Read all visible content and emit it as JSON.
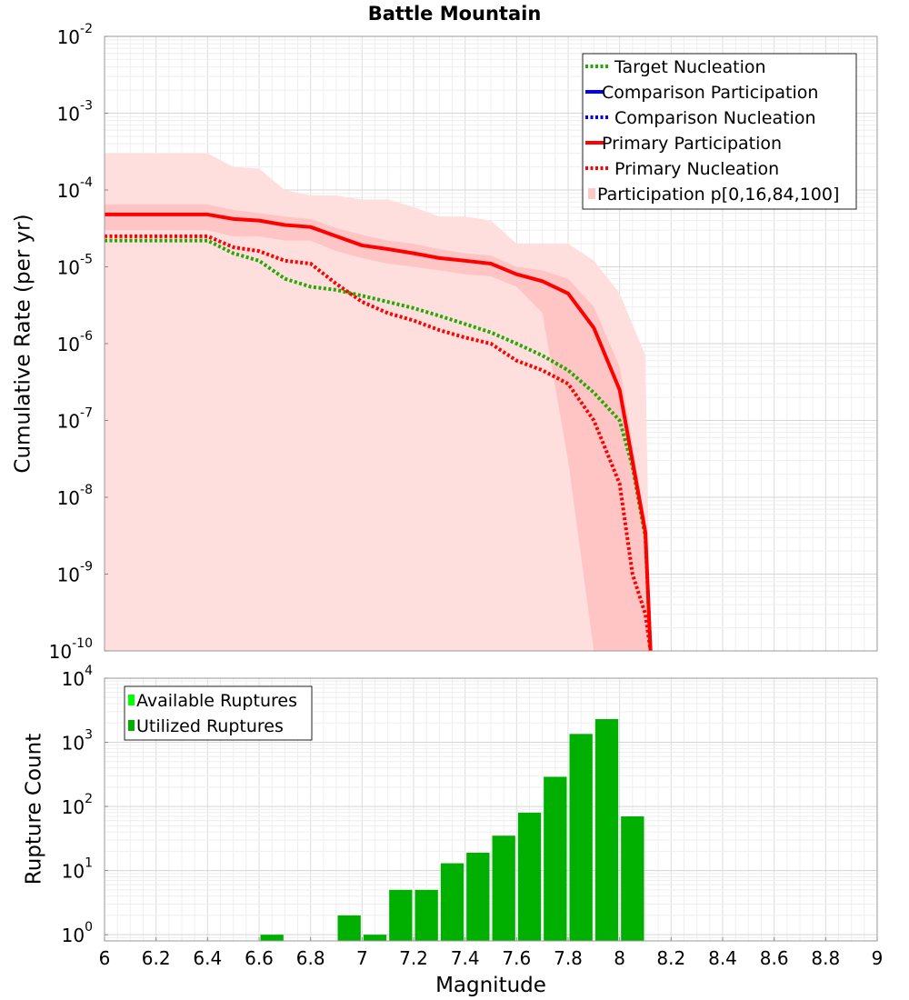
{
  "chart_data": {
    "title": "Battle Mountain",
    "xlabel": "Magnitude",
    "xlim": [
      6,
      9
    ],
    "x_ticks": [
      "6",
      "6.2",
      "6.4",
      "6.6",
      "6.8",
      "7",
      "7.2",
      "7.4",
      "7.6",
      "7.8",
      "8",
      "8.2",
      "8.4",
      "8.6",
      "8.8",
      "9"
    ],
    "top": {
      "type": "line",
      "ylabel": "Cumulative Rate (per yr)",
      "yscale": "log",
      "ylim": [
        1e-10,
        0.01
      ],
      "y_ticks": [
        {
          "base": "10",
          "exp": "-10"
        },
        {
          "base": "10",
          "exp": "-9"
        },
        {
          "base": "10",
          "exp": "-8"
        },
        {
          "base": "10",
          "exp": "-7"
        },
        {
          "base": "10",
          "exp": "-6"
        },
        {
          "base": "10",
          "exp": "-5"
        },
        {
          "base": "10",
          "exp": "-4"
        },
        {
          "base": "10",
          "exp": "-3"
        },
        {
          "base": "10",
          "exp": "-2"
        }
      ],
      "legend": [
        {
          "label": "Target Nucleation",
          "color": "#22aa00",
          "style": "dotted"
        },
        {
          "label": "Comparison Participation",
          "color": "#0000ff",
          "style": "solid"
        },
        {
          "label": "Comparison Nucleation",
          "color": "#0000ff",
          "style": "dotted"
        },
        {
          "label": "Primary Participation",
          "color": "#ff0000",
          "style": "solid"
        },
        {
          "label": "Primary Nucleation",
          "color": "#ff0000",
          "style": "dotted"
        },
        {
          "label": "Participation p[0,16,84,100]",
          "color": "#ffc8c8",
          "style": "box"
        }
      ],
      "band_outer": {
        "name": "Participation p0-p100",
        "color": "#ffdede",
        "x": [
          6.0,
          6.4,
          6.5,
          6.6,
          6.7,
          6.8,
          6.9,
          7.0,
          7.1,
          7.2,
          7.3,
          7.4,
          7.5,
          7.6,
          7.7,
          7.8,
          7.9,
          8.0,
          8.1,
          8.12
        ],
        "upper": [
          0.0003,
          0.0003,
          0.0002,
          0.00019,
          0.0001,
          8.5e-05,
          8.5e-05,
          7.5e-05,
          7.5e-05,
          6e-05,
          4.5e-05,
          4.5e-05,
          4e-05,
          2e-05,
          2e-05,
          2e-05,
          1.2e-05,
          4.5e-06,
          7e-07,
          1e-10
        ],
        "lower": [
          1e-10,
          1e-10,
          1e-10,
          1e-10,
          1e-10,
          1e-10,
          1e-10,
          1e-10,
          1e-10,
          1e-10,
          1e-10,
          1e-10,
          1e-10,
          1e-10,
          1e-10,
          1e-10,
          1e-10,
          1e-10,
          1e-10,
          1e-10
        ]
      },
      "band_inner": {
        "name": "Participation p16-p84",
        "color": "#ffc4c4",
        "x": [
          6.0,
          6.4,
          6.5,
          6.6,
          6.7,
          6.8,
          6.9,
          7.0,
          7.1,
          7.2,
          7.3,
          7.4,
          7.5,
          7.6,
          7.7,
          7.8,
          7.9,
          8.0,
          8.1,
          8.12
        ],
        "upper": [
          6.5e-05,
          6.5e-05,
          5.5e-05,
          5e-05,
          4.5e-05,
          4.2e-05,
          3.2e-05,
          2.6e-05,
          2.2e-05,
          2e-05,
          1.7e-05,
          1.5e-05,
          1.4e-05,
          1e-05,
          9e-06,
          7e-06,
          3e-06,
          5e-07,
          5e-09,
          1e-10
        ],
        "lower": [
          3e-05,
          3e-05,
          2.5e-05,
          2.5e-05,
          2.2e-05,
          2.2e-05,
          1.6e-05,
          1.3e-05,
          1.1e-05,
          1e-05,
          9e-06,
          8e-06,
          7.5e-06,
          5.5e-06,
          2.5e-06,
          3e-08,
          1e-10,
          1e-10,
          1e-10,
          1e-10
        ]
      },
      "series": [
        {
          "name": "Target Nucleation",
          "color": "#22aa00",
          "style": "dotted",
          "x": [
            6.0,
            6.4,
            6.5,
            6.6,
            6.7,
            6.8,
            6.9,
            7.0,
            7.1,
            7.2,
            7.3,
            7.4,
            7.5,
            7.6,
            7.7,
            7.8,
            7.9,
            8.0,
            8.05,
            8.1,
            8.12
          ],
          "values": [
            2.2e-05,
            2.2e-05,
            1.5e-05,
            1.2e-05,
            7e-06,
            5.5e-06,
            5e-06,
            4.2e-06,
            3.5e-06,
            2.9e-06,
            2.3e-06,
            1.8e-06,
            1.4e-06,
            1e-06,
            7e-07,
            4.5e-07,
            2.3e-07,
            1e-07,
            2.5e-08,
            3e-09,
            1e-10
          ]
        },
        {
          "name": "Primary Participation",
          "color": "#ff0000",
          "style": "solid",
          "x": [
            6.0,
            6.4,
            6.5,
            6.6,
            6.7,
            6.8,
            6.9,
            7.0,
            7.1,
            7.2,
            7.3,
            7.4,
            7.5,
            7.6,
            7.7,
            7.8,
            7.9,
            8.0,
            8.1,
            8.12
          ],
          "values": [
            4.8e-05,
            4.8e-05,
            4.2e-05,
            4e-05,
            3.5e-05,
            3.3e-05,
            2.5e-05,
            1.9e-05,
            1.7e-05,
            1.5e-05,
            1.3e-05,
            1.2e-05,
            1.1e-05,
            8e-06,
            6.5e-06,
            4.5e-06,
            1.6e-06,
            2.5e-07,
            3.5e-09,
            1e-10
          ]
        },
        {
          "name": "Primary Nucleation",
          "color": "#ff0000",
          "style": "dotted",
          "x": [
            6.0,
            6.4,
            6.5,
            6.6,
            6.7,
            6.8,
            6.9,
            7.0,
            7.1,
            7.2,
            7.3,
            7.4,
            7.5,
            7.6,
            7.7,
            7.8,
            7.9,
            8.0,
            8.05,
            8.1,
            8.12
          ],
          "values": [
            2.5e-05,
            2.5e-05,
            1.8e-05,
            1.6e-05,
            1.2e-05,
            1.1e-05,
            6e-06,
            3.5e-06,
            2.5e-06,
            2e-06,
            1.5e-06,
            1.2e-06,
            1e-06,
            6e-07,
            4.5e-07,
            3e-07,
            1e-07,
            1.5e-08,
            1e-09,
            3e-10,
            1e-10
          ]
        }
      ]
    },
    "bottom": {
      "type": "bar",
      "ylabel": "Rupture Count",
      "yscale": "log",
      "ylim": [
        0.8,
        10000
      ],
      "y_ticks": [
        {
          "base": "10",
          "exp": "0"
        },
        {
          "base": "10",
          "exp": "1"
        },
        {
          "base": "10",
          "exp": "2"
        },
        {
          "base": "10",
          "exp": "3"
        },
        {
          "base": "10",
          "exp": "4"
        }
      ],
      "legend": [
        {
          "label": "Available Ruptures",
          "color": "#00ff00"
        },
        {
          "label": "Utilized Ruptures",
          "color": "#00b000"
        }
      ],
      "bar_width": 0.1,
      "bars": [
        {
          "x": 6.65,
          "value": 1
        },
        {
          "x": 6.95,
          "value": 2
        },
        {
          "x": 7.05,
          "value": 1
        },
        {
          "x": 7.15,
          "value": 5
        },
        {
          "x": 7.25,
          "value": 5
        },
        {
          "x": 7.35,
          "value": 13
        },
        {
          "x": 7.45,
          "value": 19
        },
        {
          "x": 7.55,
          "value": 35
        },
        {
          "x": 7.65,
          "value": 80
        },
        {
          "x": 7.75,
          "value": 290
        },
        {
          "x": 7.85,
          "value": 1350
        },
        {
          "x": 7.95,
          "value": 2300
        },
        {
          "x": 8.05,
          "value": 70
        }
      ]
    }
  }
}
